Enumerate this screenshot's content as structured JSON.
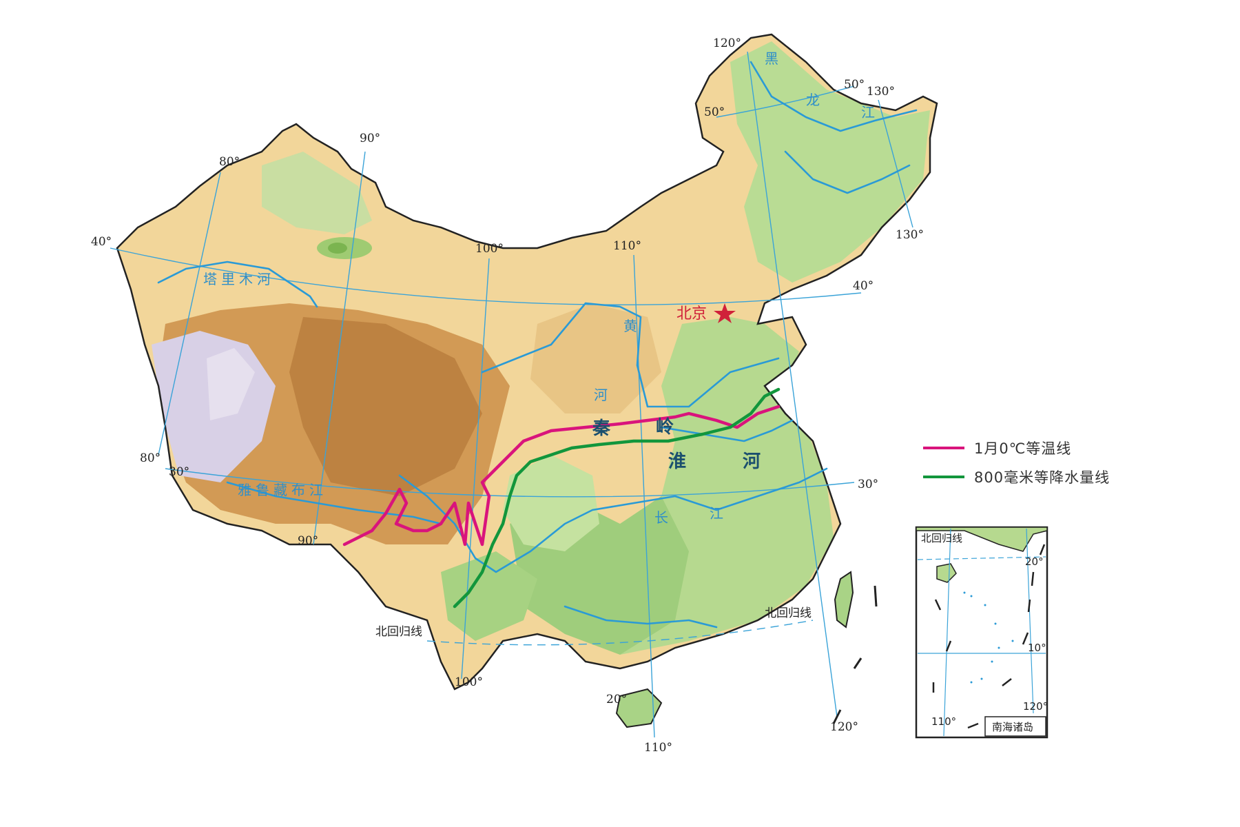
{
  "colors": {
    "isotherm": "#d9147c",
    "precip_line": "#12963c",
    "river": "#2a9ad6",
    "graticule": "#3aa3d8",
    "capital": "#d0213a",
    "geo_label": "#1b4f6e",
    "lowland": "#a8d08a",
    "plain": "#c8e3a0",
    "hills": "#f2e3a6",
    "plateau": "#efc98a",
    "high_plateau": "#d9a15c",
    "mountain": "#c38746",
    "snow": "#d6cde3"
  },
  "graticule_labels": {
    "lon_80_top": "80°",
    "lon_90_top": "90°",
    "lon_100_top": "100°",
    "lon_110_top": "110°",
    "lon_120_top": "120°",
    "lon_130_top": "130°",
    "lon_130_right": "130°",
    "lat_40_left": "40°",
    "lat_40_right": "40°",
    "lat_50_left": "50°",
    "lat_50_right": "50°",
    "lat_30_left": "30°",
    "lat_30_right": "30°",
    "lon_80_bottom": "80°",
    "lon_90_bottom": "90°",
    "lon_100_bottom": "100°",
    "lon_110_bottom": "110°",
    "lon_120_bottom": "120°",
    "lat_20": "20°"
  },
  "places": {
    "capital": "北京",
    "tropic_left": "北回归线",
    "tropic_right": "北回归线"
  },
  "rivers": {
    "tarim": "塔里木河",
    "yarlung": "雅鲁藏布江",
    "yellow_1": "黄",
    "yellow_2": "河",
    "yangtze_1": "长",
    "yangtze_2": "江",
    "heilong_1": "黑",
    "heilong_2": "龙",
    "heilong_3": "江"
  },
  "geo": {
    "qin_1": "秦",
    "qin_2": "岭",
    "huai_1": "淮",
    "huai_2": "河"
  },
  "legend": {
    "isotherm_label": "1月0℃等温线",
    "precip_label": "800毫米等降水量线"
  },
  "inset": {
    "title": "南海诸岛",
    "tropic": "北回归线",
    "lat_20": "20°",
    "lat_10": "10°",
    "lon_110": "110°",
    "lon_120": "120°"
  }
}
